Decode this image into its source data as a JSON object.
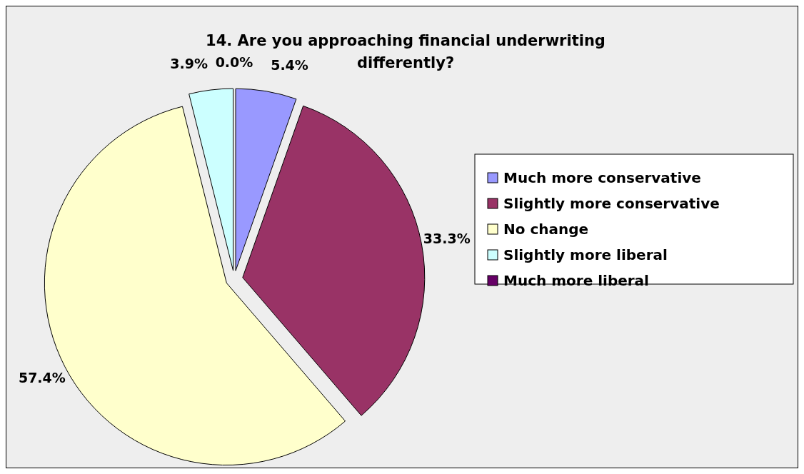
{
  "chart_data": {
    "type": "pie",
    "title": "14. Are you approaching financial underwriting differently?",
    "categories": [
      "Much more conservative",
      "Slightly more conservative",
      "No change",
      "Slightly more liberal",
      "Much more liberal"
    ],
    "values": [
      5.4,
      33.3,
      57.4,
      3.9,
      0.0
    ],
    "colors": [
      "#9999ff",
      "#993366",
      "#ffffcc",
      "#ccffff",
      "#660066"
    ],
    "value_labels": [
      "5.4%",
      "33.3%",
      "57.4%",
      "3.9%",
      "0.0%"
    ],
    "legend": "right"
  }
}
